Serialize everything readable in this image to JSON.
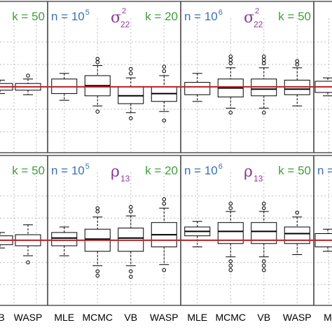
{
  "colors": {
    "n_label": "#3b6fb6",
    "k_label": "#3e9e3e",
    "param_label": "#8e3a96",
    "truth_line": "#c0262a",
    "box_fill": "#ffffff",
    "panel_border": "#555555",
    "grid": "#bdbdbd"
  },
  "chart_data": {
    "type": "boxplot",
    "grid": true,
    "methods": [
      "MLE",
      "MCMC",
      "VB",
      "WASP"
    ],
    "panels": [
      {
        "id": "left-top",
        "row": 0,
        "n_label": "",
        "n_exp": "",
        "param": "",
        "param_sub": "",
        "param_sup": "",
        "k_label": "k = 50",
        "x_labels": [
          "",
          "",
          "",
          "",
          "",
          "",
          "",
          ""
        ],
        "truth": 0.5,
        "boxes": [
          {
            "method": "VB",
            "q1": 0.47,
            "median": 0.5,
            "q3": 0.53,
            "lo": 0.44,
            "hi": 0.56,
            "out": []
          },
          {
            "method": "WASP",
            "q1": 0.47,
            "median": 0.5,
            "q3": 0.53,
            "lo": 0.43,
            "hi": 0.57,
            "out": [
              0.6
            ]
          }
        ]
      },
      {
        "id": "n1e5-sigma22",
        "row": 0,
        "n_label": "n = 10",
        "n_exp": "5",
        "param": "σ",
        "param_sub": "22",
        "param_sup": "2",
        "k_label": "k = 20",
        "x_labels": [
          "MLE",
          "MCMC",
          "VB",
          "WASP"
        ],
        "truth": 0.5,
        "boxes": [
          {
            "method": "MLE",
            "q1": 0.44,
            "median": 0.5,
            "q3": 0.57,
            "lo": 0.38,
            "hi": 0.62,
            "out": []
          },
          {
            "method": "MCMC",
            "q1": 0.42,
            "median": 0.51,
            "q3": 0.6,
            "lo": 0.33,
            "hi": 0.69,
            "out": [
              0.72,
              0.75,
              0.28
            ]
          },
          {
            "method": "VB",
            "q1": 0.35,
            "median": 0.42,
            "q3": 0.5,
            "lo": 0.27,
            "hi": 0.58,
            "out": [
              0.62,
              0.66,
              0.22
            ]
          },
          {
            "method": "WASP",
            "q1": 0.37,
            "median": 0.44,
            "q3": 0.5,
            "lo": 0.28,
            "hi": 0.6,
            "out": [
              0.64,
              0.68,
              0.2
            ]
          }
        ]
      },
      {
        "id": "n1e6-sigma22",
        "row": 0,
        "n_label": "n = 10",
        "n_exp": "6",
        "param": "σ",
        "param_sub": "22",
        "param_sup": "2",
        "k_label": "k = 50",
        "x_labels": [
          "MLE",
          "MCMC",
          "VB",
          "WASP"
        ],
        "truth": 0.5,
        "boxes": [
          {
            "method": "MLE",
            "q1": 0.43,
            "median": 0.5,
            "q3": 0.54,
            "lo": 0.37,
            "hi": 0.62,
            "out": []
          },
          {
            "method": "MCMC",
            "q1": 0.41,
            "median": 0.49,
            "q3": 0.57,
            "lo": 0.31,
            "hi": 0.67,
            "out": [
              0.71,
              0.74,
              0.77,
              0.27
            ]
          },
          {
            "method": "VB",
            "q1": 0.42,
            "median": 0.48,
            "q3": 0.57,
            "lo": 0.31,
            "hi": 0.67,
            "out": [
              0.71,
              0.74,
              0.77,
              0.27
            ]
          },
          {
            "method": "WASP",
            "q1": 0.43,
            "median": 0.48,
            "q3": 0.56,
            "lo": 0.33,
            "hi": 0.67,
            "out": [
              0.7,
              0.73
            ]
          }
        ]
      },
      {
        "id": "right-top",
        "row": 0,
        "n_label": "",
        "n_exp": "",
        "param": "",
        "param_sub": "",
        "param_sup": "",
        "k_label": "",
        "x_labels": [
          "",
          "",
          "",
          ""
        ],
        "truth": 0.5,
        "boxes": [
          {
            "method": "MLE",
            "q1": 0.45,
            "median": 0.5,
            "q3": 0.55,
            "lo": 0.42,
            "hi": 0.58,
            "out": []
          }
        ]
      },
      {
        "id": "left-bottom",
        "row": 1,
        "n_label": "",
        "n_exp": "",
        "param": "",
        "param_sub": "",
        "param_sup": "",
        "k_label": "k = 50",
        "x_labels": [
          "B",
          "WASP"
        ],
        "truth": 0.5,
        "boxes": [
          {
            "method": "VB",
            "q1": 0.46,
            "median": 0.5,
            "q3": 0.54,
            "lo": 0.43,
            "hi": 0.57,
            "out": []
          },
          {
            "method": "WASP",
            "q1": 0.45,
            "median": 0.5,
            "q3": 0.55,
            "lo": 0.36,
            "hi": 0.64,
            "out": [
              0.3
            ]
          }
        ]
      },
      {
        "id": "n1e5-rho13",
        "row": 1,
        "n_label": "n = 10",
        "n_exp": "5",
        "param": "ρ",
        "param_sub": "13",
        "param_sup": "",
        "k_label": "k = 20",
        "x_labels": [
          "MLE",
          "MCMC",
          "VB",
          "WASP"
        ],
        "truth": 0.5,
        "boxes": [
          {
            "method": "MLE",
            "q1": 0.45,
            "median": 0.52,
            "q3": 0.57,
            "lo": 0.36,
            "hi": 0.62,
            "out": []
          },
          {
            "method": "MCMC",
            "q1": 0.4,
            "median": 0.51,
            "q3": 0.6,
            "lo": 0.27,
            "hi": 0.71,
            "out": [
              0.76,
              0.79,
              0.22,
              0.18
            ]
          },
          {
            "method": "VB",
            "q1": 0.4,
            "median": 0.52,
            "q3": 0.61,
            "lo": 0.27,
            "hi": 0.72,
            "out": [
              0.76,
              0.8,
              0.22,
              0.17
            ]
          },
          {
            "method": "WASP",
            "q1": 0.44,
            "median": 0.55,
            "q3": 0.66,
            "lo": 0.28,
            "hi": 0.79,
            "out": [
              0.83,
              0.87,
              0.23
            ]
          }
        ]
      },
      {
        "id": "n1e6-rho13",
        "row": 1,
        "n_label": "n = 10",
        "n_exp": "6",
        "param": "ρ",
        "param_sub": "13",
        "param_sup": "",
        "k_label": "k = 50",
        "x_labels": [
          "MLE",
          "MCMC",
          "VB",
          "WASP"
        ],
        "truth": 0.5,
        "boxes": [
          {
            "method": "MLE",
            "q1": 0.54,
            "median": 0.58,
            "q3": 0.62,
            "lo": 0.44,
            "hi": 0.67,
            "out": []
          },
          {
            "method": "MCMC",
            "q1": 0.47,
            "median": 0.58,
            "q3": 0.66,
            "lo": 0.35,
            "hi": 0.76,
            "out": [
              0.79,
              0.83,
              0.31,
              0.27,
              0.23
            ]
          },
          {
            "method": "VB",
            "q1": 0.47,
            "median": 0.58,
            "q3": 0.66,
            "lo": 0.35,
            "hi": 0.76,
            "out": [
              0.79,
              0.83,
              0.31,
              0.27,
              0.23
            ]
          },
          {
            "method": "WASP",
            "q1": 0.47,
            "median": 0.56,
            "q3": 0.62,
            "lo": 0.37,
            "hi": 0.71,
            "out": [
              0.75
            ]
          }
        ]
      },
      {
        "id": "right-bottom",
        "row": 1,
        "n_label": "n = ",
        "n_exp": "",
        "param": "",
        "param_sub": "",
        "param_sup": "",
        "k_label": "",
        "x_labels": [
          "M",
          "",
          "",
          ""
        ],
        "truth": 0.5,
        "boxes": [
          {
            "method": "MLE",
            "q1": 0.44,
            "median": 0.5,
            "q3": 0.56,
            "lo": 0.4,
            "hi": 0.6,
            "out": []
          }
        ]
      }
    ]
  }
}
